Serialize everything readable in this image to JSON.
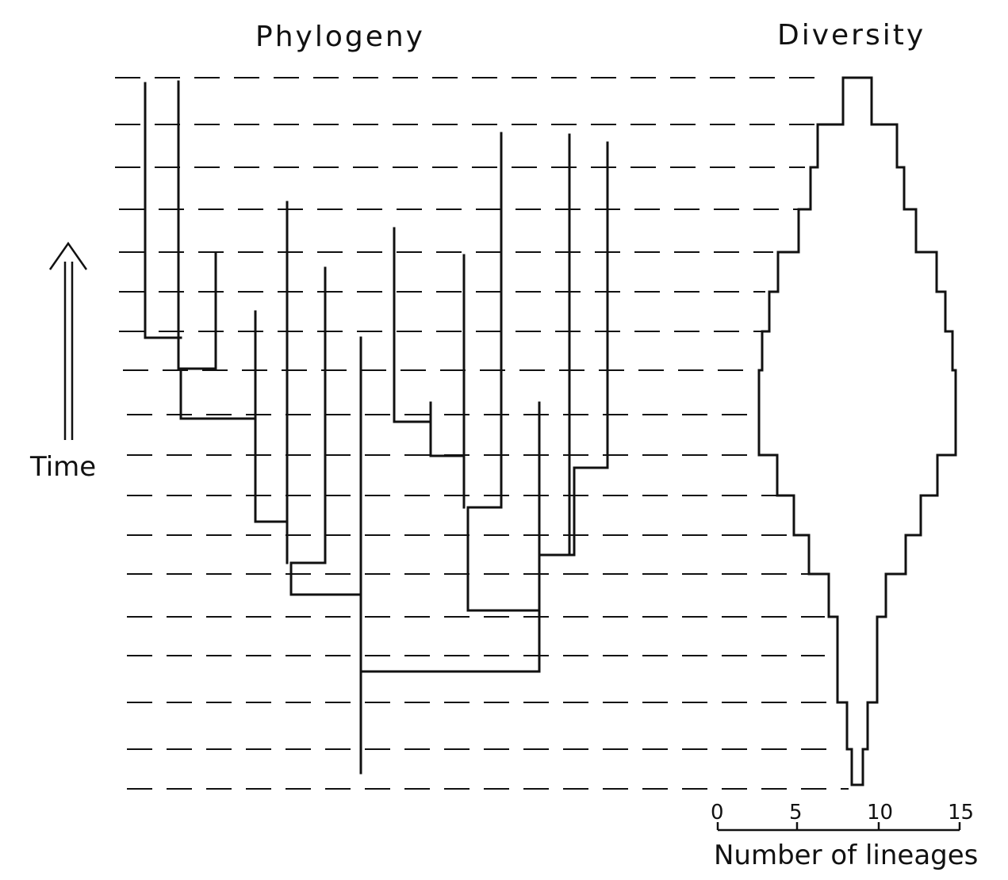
{
  "figure": {
    "phylogeny_title": "Phylogeny",
    "diversity_title": "Diversity",
    "time_label": "Time",
    "axis_label": "Number of lineages",
    "axis_ticks": [
      "0",
      "5",
      "10",
      "15"
    ]
  },
  "colors": {
    "ink": "#111111",
    "background": "#ffffff"
  }
}
